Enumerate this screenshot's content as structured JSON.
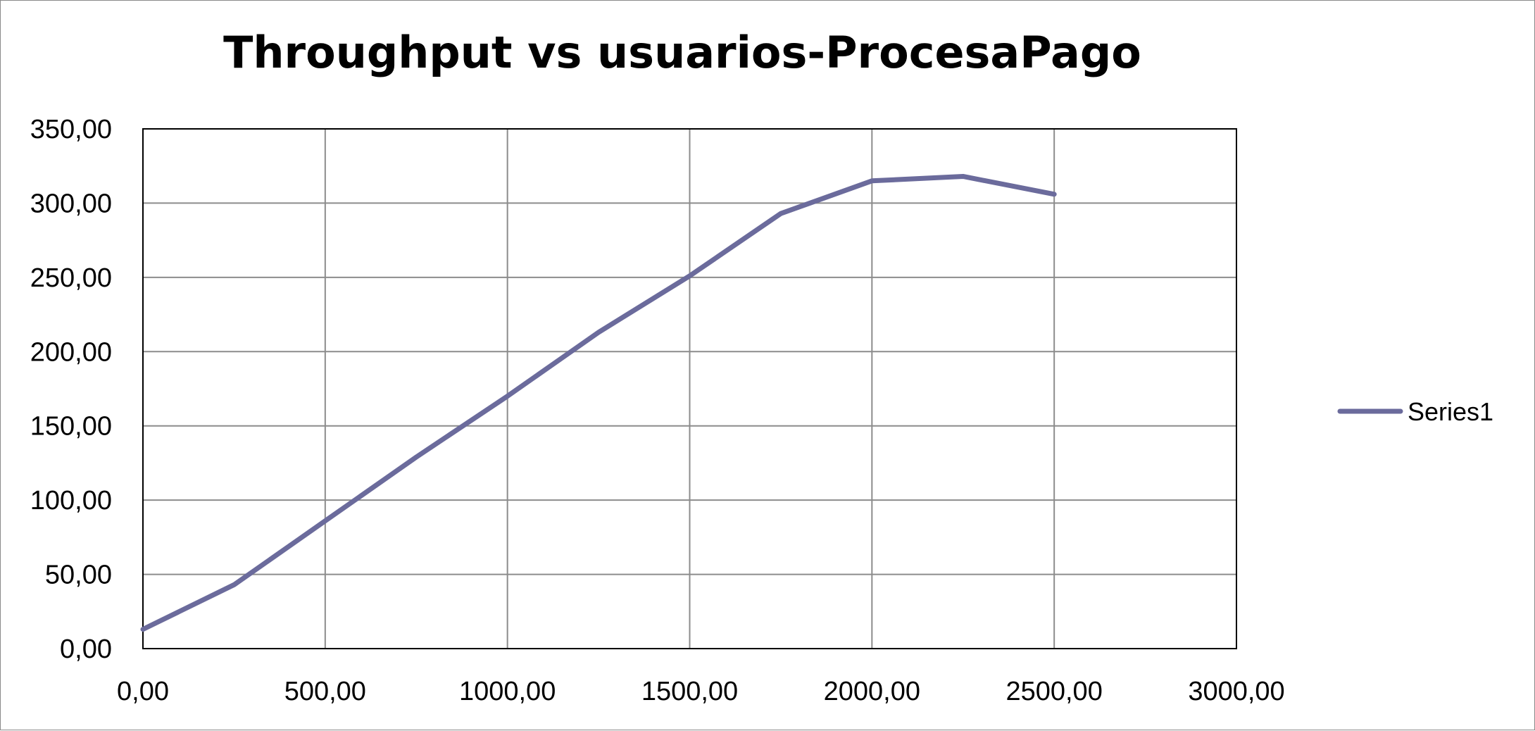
{
  "chart_data": {
    "type": "line",
    "title": "Throughput vs usuarios-ProcesaPago",
    "xlabel": "",
    "ylabel": "",
    "xlim": [
      0,
      3000
    ],
    "ylim": [
      0,
      350
    ],
    "x_ticks": [
      "0,00",
      "500,00",
      "1000,00",
      "1500,00",
      "2000,00",
      "2500,00",
      "3000,00"
    ],
    "y_ticks": [
      "0,00",
      "50,00",
      "100,00",
      "150,00",
      "200,00",
      "250,00",
      "300,00",
      "350,00"
    ],
    "x_tick_values": [
      0,
      500,
      1000,
      1500,
      2000,
      2500,
      3000
    ],
    "y_tick_values": [
      0,
      50,
      100,
      150,
      200,
      250,
      300,
      350
    ],
    "grid": true,
    "legend_position": "right",
    "series": [
      {
        "name": "Series1",
        "color": "#6b6b9c",
        "x": [
          0,
          250,
          500,
          750,
          1000,
          1250,
          1500,
          1750,
          2000,
          2250,
          2500
        ],
        "y": [
          13,
          43,
          86,
          129,
          170,
          213,
          251,
          293,
          315,
          318,
          306
        ]
      }
    ]
  }
}
